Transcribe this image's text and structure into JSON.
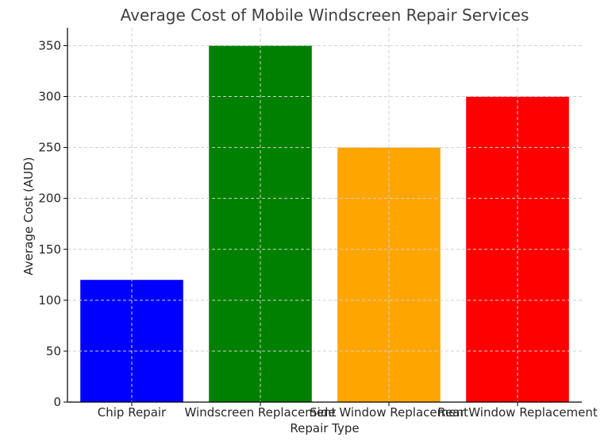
{
  "chart_data": {
    "type": "bar",
    "title": "Average Cost of Mobile Windscreen Repair Services",
    "xlabel": "Repair Type",
    "ylabel": "Average Cost (AUD)",
    "categories": [
      "Chip Repair",
      "Windscreen Replacement",
      "Side Window Replacement",
      "Rear Window Replacement"
    ],
    "values": [
      120,
      350,
      250,
      300
    ],
    "colors": [
      "#0000ff",
      "#008000",
      "#ffa500",
      "#ff0000"
    ],
    "ylim": [
      0,
      367.5
    ],
    "yticks": [
      "0",
      "50",
      "100",
      "150",
      "200",
      "250",
      "300",
      "350"
    ],
    "grid": true,
    "legend": "none"
  }
}
